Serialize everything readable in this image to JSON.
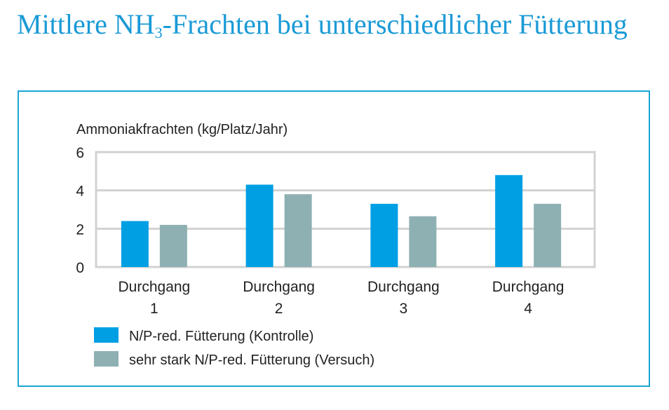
{
  "title": {
    "before": "Mittlere NH",
    "sub": "3",
    "after": "-Frachten bei unterschiedlicher Fütterung"
  },
  "chart_data": {
    "type": "bar",
    "title": "Mittlere NH3-Frachten bei unterschiedlicher Fütterung",
    "ylabel": "Ammoniakfrachten (kg/Platz/Jahr)",
    "xlabel": "",
    "ylim": [
      0,
      6
    ],
    "yticks": [
      0,
      2,
      4,
      6
    ],
    "grid": true,
    "legend_position": "bottom-left",
    "categories": [
      [
        "Durchgang",
        "1"
      ],
      [
        "Durchgang",
        "2"
      ],
      [
        "Durchgang",
        "3"
      ],
      [
        "Durchgang",
        "4"
      ]
    ],
    "series": [
      {
        "name": "N/P-red. Fütterung (Kontrolle)",
        "color": "#009fe3",
        "values": [
          2.4,
          4.3,
          3.3,
          4.8
        ]
      },
      {
        "name": "sehr stark N/P-red. Fütterung (Versuch)",
        "color": "#8eb0b2",
        "values": [
          2.2,
          3.8,
          2.65,
          3.3
        ]
      }
    ]
  }
}
